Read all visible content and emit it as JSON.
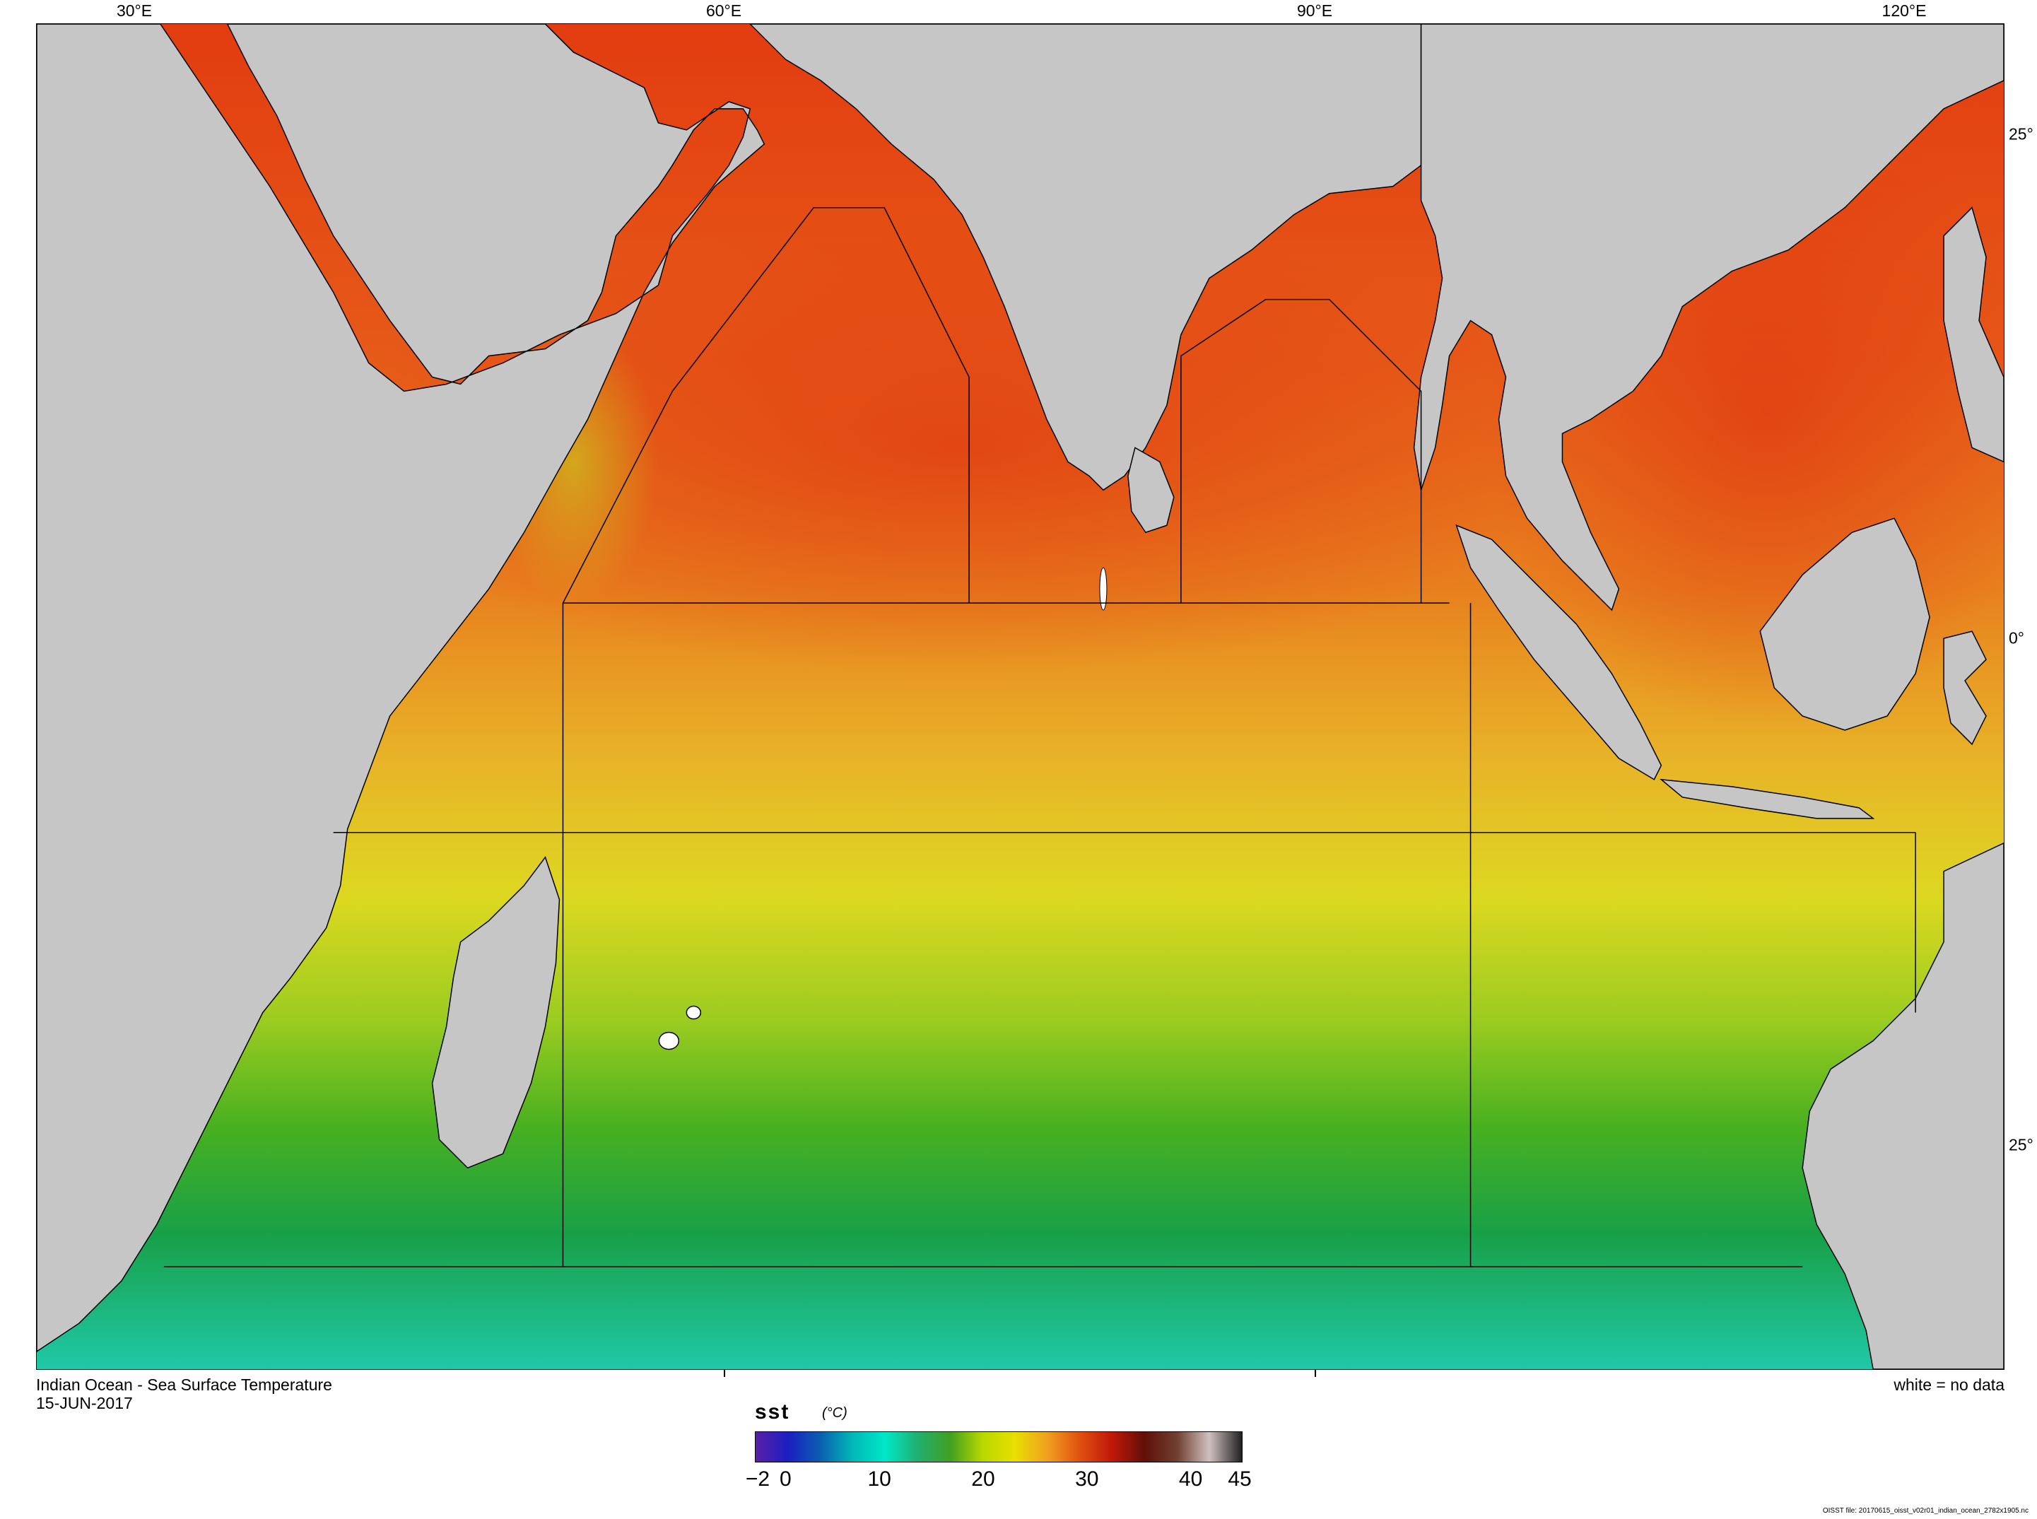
{
  "longitude_labels": [
    "30°E",
    "60°E",
    "90°E",
    "120°E"
  ],
  "latitude_labels": [
    "25°",
    "0°",
    "25°"
  ],
  "caption": {
    "title": "Indian Ocean - Sea Surface Temperature",
    "date": "15-JUN-2017",
    "no_data_note": "white = no data"
  },
  "colorbar": {
    "variable": "sst",
    "units": "(°C)",
    "range": [
      -2,
      45
    ],
    "tick_labels": [
      "−2",
      "0",
      "10",
      "20",
      "30",
      "40",
      "45"
    ],
    "tick_values": [
      -2,
      0,
      10,
      20,
      30,
      40,
      45
    ],
    "colors": [
      "#5a1fa8",
      "#1a1fc0",
      "#0a5fb0",
      "#00b8b8",
      "#00e8c8",
      "#20b070",
      "#40a020",
      "#b8d800",
      "#e8e000",
      "#f0a020",
      "#e05010",
      "#c01808",
      "#601008",
      "#704030",
      "#d0c0c0",
      "#202020"
    ]
  },
  "colors": {
    "land": "#c6c6c6",
    "no_data": "#ffffff",
    "ocean_gradient": [
      "#e03c10",
      "#e8741c",
      "#e8b428",
      "#e0d820",
      "#a8d020",
      "#40b020",
      "#10a050",
      "#20c0a0"
    ]
  },
  "file_note": "OISST file: 20170615_oisst_v02r01_indian_ocean_2782x1905.nc"
}
